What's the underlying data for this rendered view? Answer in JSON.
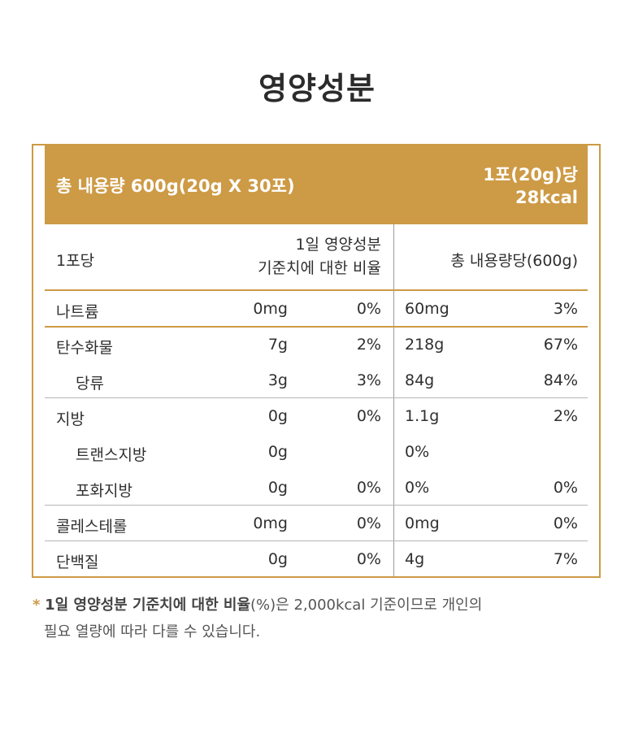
{
  "title": "영양성분",
  "header": {
    "total_content": "총 내용량 600g(20g X 30포)",
    "per_pack_line1": "1포(20g)당",
    "per_pack_line2": "28kcal"
  },
  "columns": {
    "per_pack": "1포당",
    "daily_line1": "1일 영양성분",
    "daily_line2": "기준치에 대한 비율",
    "total": "총 내용량당(600g)"
  },
  "rows": [
    {
      "name": "나트륨",
      "amount": "0mg",
      "percent": "0%",
      "total_amount": "60mg",
      "total_percent": "3%",
      "sub": false
    },
    {
      "name": "탄수화물",
      "amount": "7g",
      "percent": "2%",
      "total_amount": "218g",
      "total_percent": "67%",
      "sub": false
    },
    {
      "name": "당류",
      "amount": "3g",
      "percent": "3%",
      "total_amount": "84g",
      "total_percent": "84%",
      "sub": true
    },
    {
      "name": "지방",
      "amount": "0g",
      "percent": "0%",
      "total_amount": "1.1g",
      "total_percent": "2%",
      "sub": false
    },
    {
      "name": "트랜스지방",
      "amount": "0g",
      "percent": "",
      "total_amount": "0%",
      "total_percent": "",
      "sub": true
    },
    {
      "name": "포화지방",
      "amount": "0g",
      "percent": "0%",
      "total_amount": "0%",
      "total_percent": "0%",
      "sub": true
    },
    {
      "name": "콜레스테롤",
      "amount": "0mg",
      "percent": "0%",
      "total_amount": "0mg",
      "total_percent": "0%",
      "sub": false
    },
    {
      "name": "단백질",
      "amount": "0g",
      "percent": "0%",
      "total_amount": "4g",
      "total_percent": "7%",
      "sub": false
    }
  ],
  "footnote": {
    "star": "*",
    "bold": "1일 영양성분 기준치에 대한 비율",
    "rest_line1": "(%)은 2,000kcal 기준이므로 개인의",
    "line2": "필요 열량에 따라 다를 수 있습니다."
  },
  "colors": {
    "accent": "#cd9a45"
  }
}
